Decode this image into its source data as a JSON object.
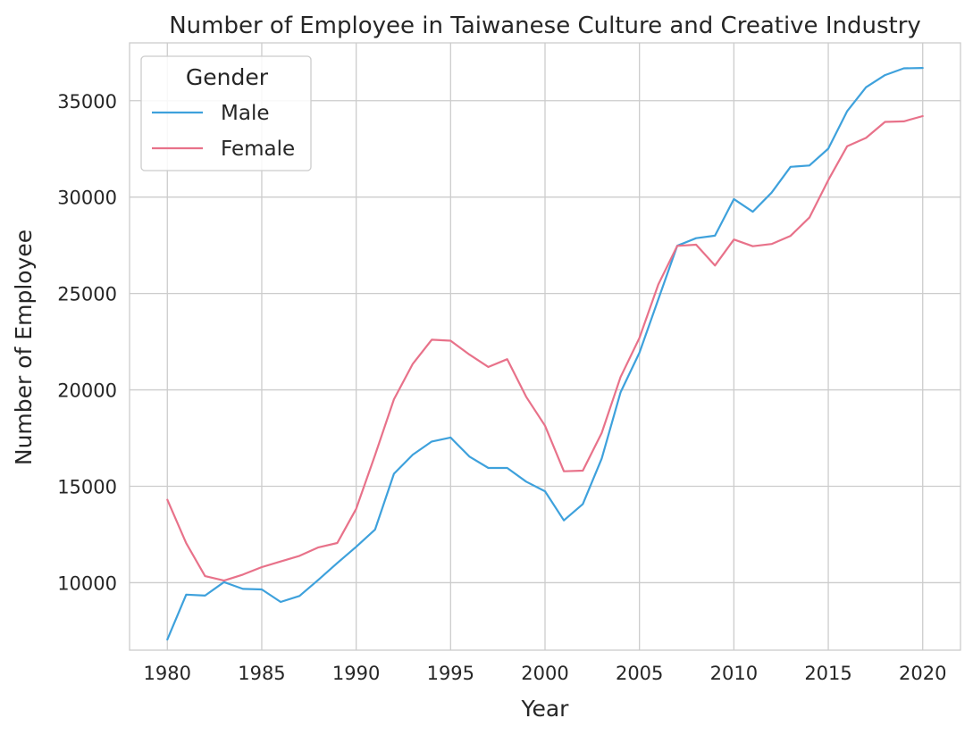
{
  "chart_data": {
    "type": "line",
    "title": "Number of Employee in Taiwanese Culture and Creative Industry",
    "xlabel": "Year",
    "ylabel": "Number of Employee",
    "xlim": [
      1978,
      2022
    ],
    "ylim": [
      6500,
      38000
    ],
    "xticks": [
      1980,
      1985,
      1990,
      1995,
      2000,
      2005,
      2010,
      2015,
      2020
    ],
    "yticks": [
      10000,
      15000,
      20000,
      25000,
      30000,
      35000
    ],
    "grid": true,
    "legend": {
      "title": "Gender",
      "placement": "top-left"
    },
    "x": [
      1980,
      1981,
      1982,
      1983,
      1984,
      1985,
      1986,
      1987,
      1988,
      1989,
      1990,
      1991,
      1992,
      1993,
      1994,
      1995,
      1996,
      1997,
      1998,
      1999,
      2000,
      2001,
      2002,
      2003,
      2004,
      2005,
      2006,
      2007,
      2008,
      2009,
      2010,
      2011,
      2012,
      2013,
      2014,
      2015,
      2016,
      2017,
      2018,
      2019,
      2020
    ],
    "series": [
      {
        "name": "Male",
        "color": "#3ea1dc",
        "values": [
          7050,
          9380,
          9330,
          10030,
          9680,
          9650,
          9000,
          9310,
          10150,
          11020,
          11860,
          12760,
          15650,
          16640,
          17320,
          17530,
          16540,
          15950,
          15950,
          15240,
          14740,
          13230,
          14080,
          16430,
          19870,
          21930,
          24700,
          27480,
          27870,
          28000,
          29900,
          29240,
          30230,
          31570,
          31640,
          32510,
          34460,
          35700,
          36330,
          36680,
          36700
        ]
      },
      {
        "name": "Female",
        "color": "#e8728a",
        "values": [
          14300,
          12050,
          10340,
          10110,
          10420,
          10810,
          11100,
          11390,
          11830,
          12060,
          13830,
          16620,
          19510,
          21350,
          22600,
          22550,
          21830,
          21190,
          21590,
          19640,
          18140,
          15780,
          15810,
          17760,
          20660,
          22700,
          25470,
          27470,
          27530,
          26450,
          27800,
          27450,
          27570,
          27990,
          28940,
          30880,
          32640,
          33070,
          33900,
          33930,
          34200
        ]
      }
    ]
  }
}
